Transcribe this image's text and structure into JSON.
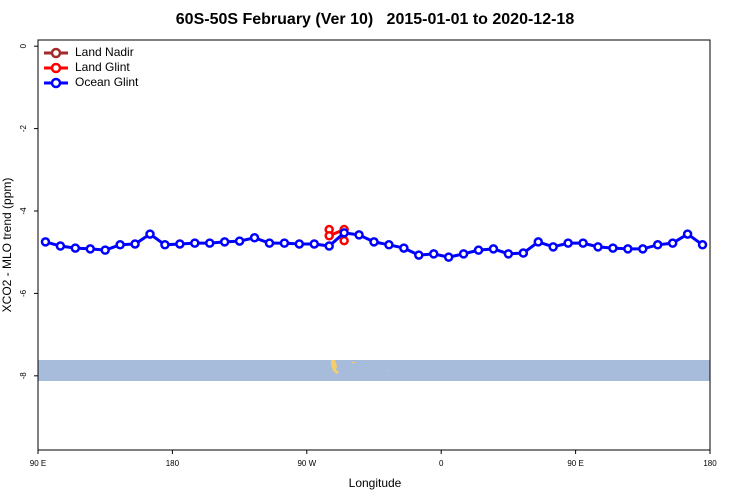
{
  "chart_data": {
    "type": "line",
    "title": "60S-50S February (Ver 10)   2015-01-01 to 2020-12-18",
    "x_label": "Longitude",
    "y_label": "XCO2 - MLO trend (ppm)",
    "xlim": [
      90,
      540
    ],
    "ylim": [
      -9.8,
      0.15
    ],
    "xticks": [
      {
        "value": 90,
        "label": "90 E"
      },
      {
        "value": 180,
        "label": "180"
      },
      {
        "value": 270,
        "label": "90 W"
      },
      {
        "value": 360,
        "label": "0"
      },
      {
        "value": 450,
        "label": "90 E"
      },
      {
        "value": 540,
        "label": "180"
      }
    ],
    "yticks": [
      0,
      -2,
      -4,
      -6,
      -8
    ],
    "legend": "top-left",
    "series": [
      {
        "name": "Land Nadir",
        "color": "#a52a2a",
        "x": [],
        "values": []
      },
      {
        "name": "Land Glint",
        "color": "#ff0000",
        "x": [
          285,
          285,
          295,
          295
        ],
        "values": [
          -4.45,
          -4.6,
          -4.45,
          -4.72
        ]
      },
      {
        "name": "Ocean Glint",
        "color": "#0000ff",
        "x": [
          95,
          105,
          115,
          125,
          135,
          145,
          155,
          165,
          175,
          185,
          195,
          205,
          215,
          225,
          235,
          245,
          255,
          265,
          275,
          285,
          295,
          305,
          315,
          325,
          335,
          345,
          355,
          365,
          375,
          385,
          395,
          405,
          415,
          425,
          435,
          445,
          455,
          465,
          475,
          485,
          495,
          505,
          515,
          525,
          535
        ],
        "values": [
          -4.75,
          -4.85,
          -4.9,
          -4.92,
          -4.95,
          -4.82,
          -4.8,
          -4.56,
          -4.82,
          -4.8,
          -4.78,
          -4.78,
          -4.75,
          -4.73,
          -4.65,
          -4.78,
          -4.78,
          -4.8,
          -4.8,
          -4.85,
          -4.53,
          -4.58,
          -4.75,
          -4.82,
          -4.9,
          -5.07,
          -5.04,
          -5.12,
          -5.04,
          -4.95,
          -4.92,
          -5.04,
          -5.02,
          -4.75,
          -4.87,
          -4.78,
          -4.78,
          -4.87,
          -4.9,
          -4.92,
          -4.92,
          -4.82,
          -4.78,
          -4.56,
          -4.82
        ]
      }
    ]
  }
}
